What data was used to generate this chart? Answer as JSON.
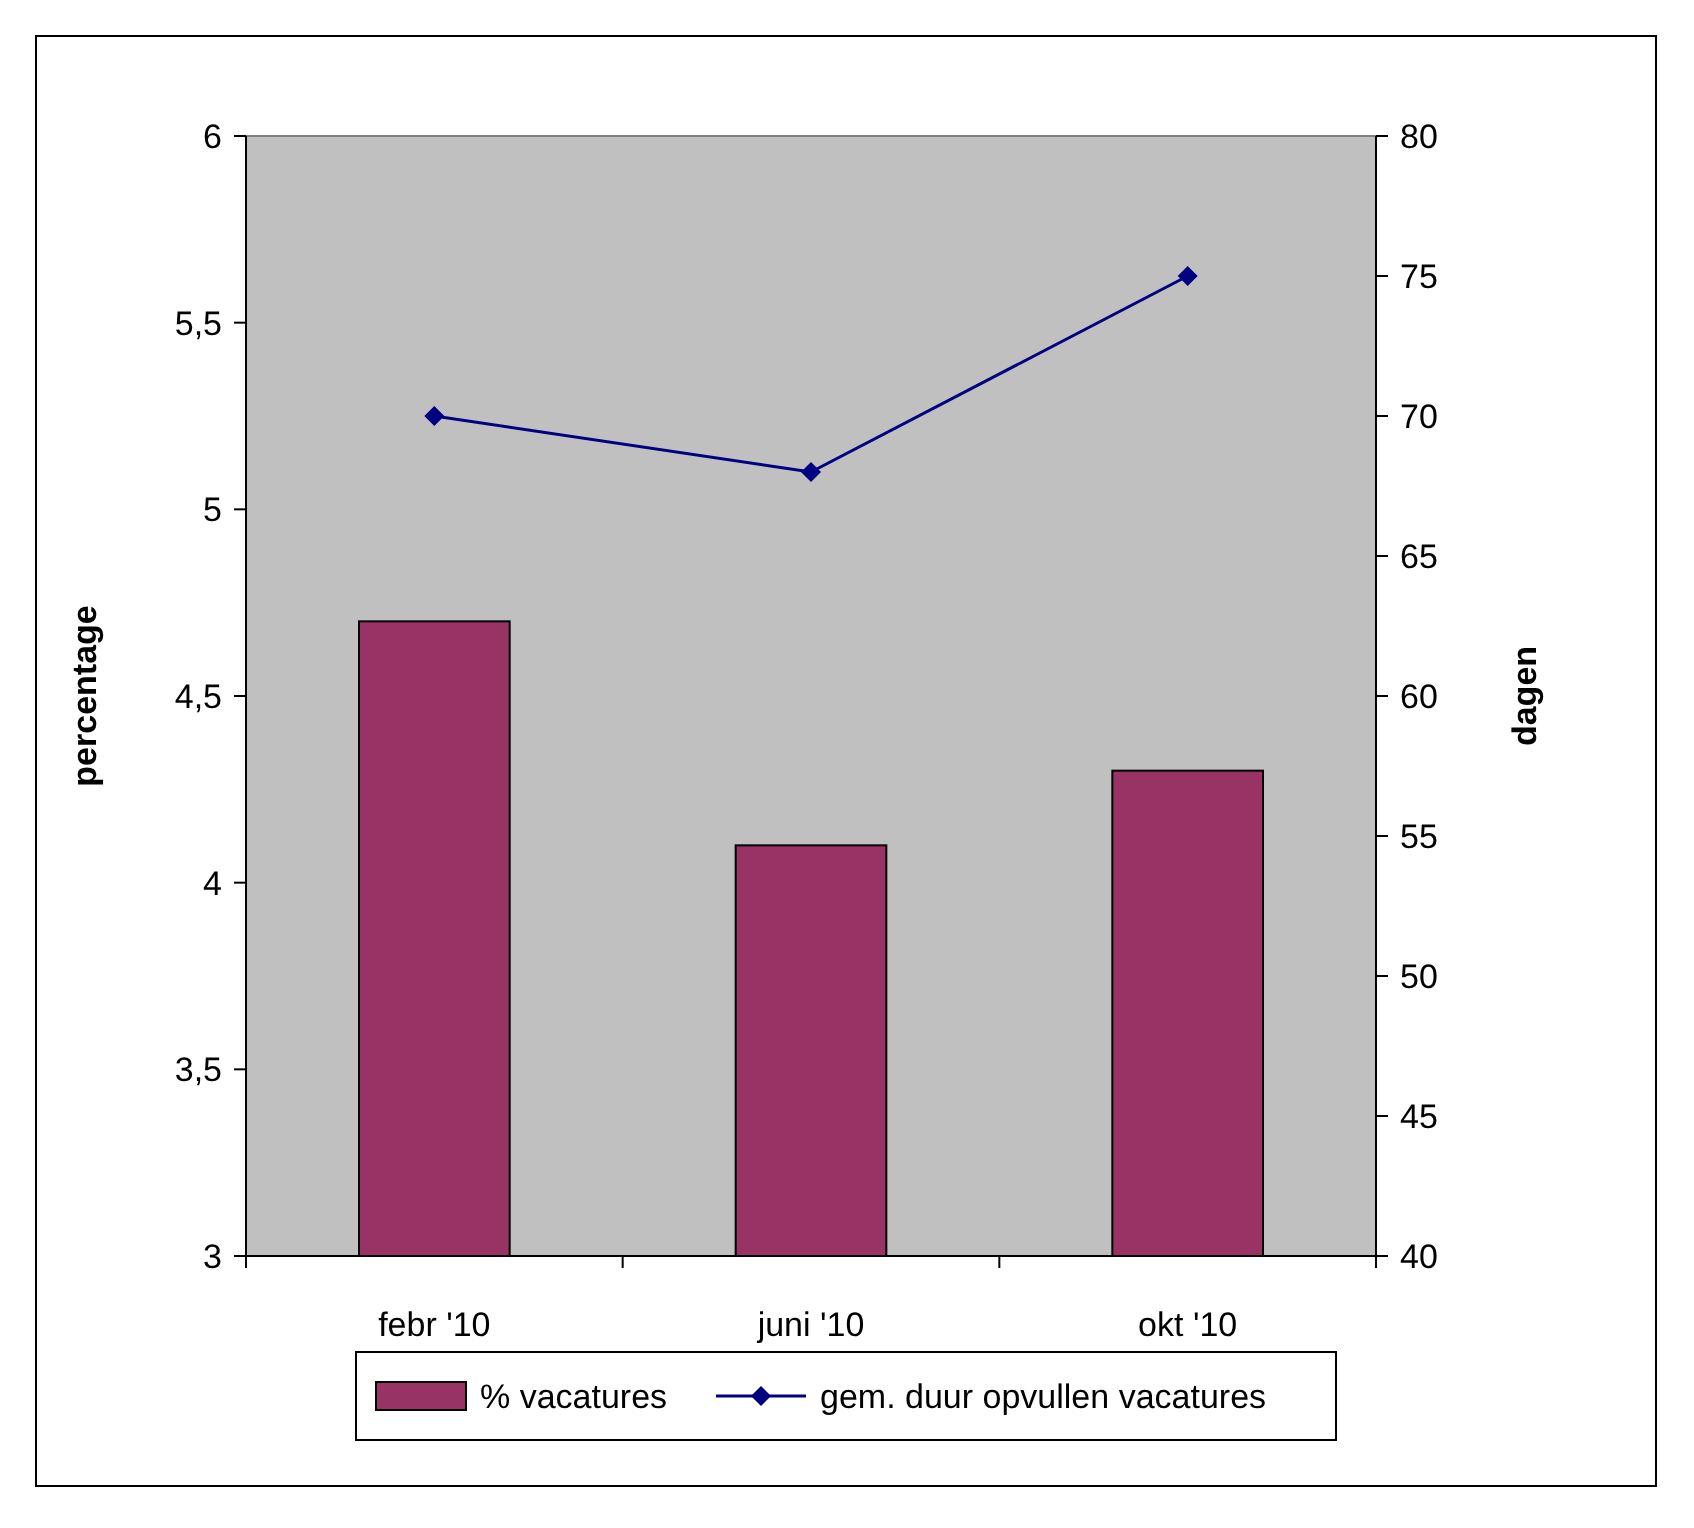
{
  "chart_data": {
    "type": "bar",
    "ylabel": "percentage",
    "y2label": "dagen",
    "categories": [
      "febr '10",
      "juni '10",
      "okt '10"
    ],
    "series": [
      {
        "name": "% vacatures",
        "color": "#993366",
        "values": [
          4.7,
          4.1,
          4.3
        ]
      },
      {
        "name": "gem. duur opvullen vacatures",
        "type": "line",
        "axis": "y2",
        "color": "#000080",
        "values": [
          70,
          68,
          75
        ]
      }
    ],
    "ylim": [
      3,
      6
    ],
    "yticks": [
      3,
      {
        "value": 3.5,
        "label": "3,5"
      },
      4,
      {
        "value": 4.5,
        "label": "4,5"
      },
      5,
      {
        "value": 5.5,
        "label": "5,5"
      },
      6
    ],
    "y2lim": [
      40,
      80
    ],
    "y2ticks": [
      40,
      45,
      50,
      55,
      60,
      65,
      70,
      75,
      80
    ],
    "grid": false,
    "legend": "bottom",
    "marker": "diamond",
    "line_style": "solid"
  }
}
